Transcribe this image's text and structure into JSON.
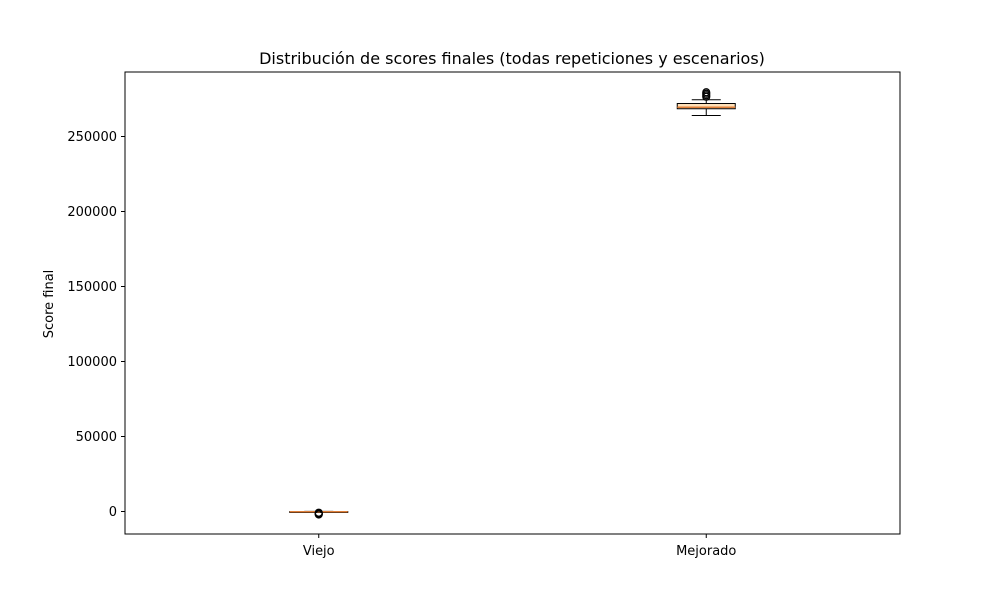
{
  "chart_data": {
    "type": "box",
    "title": "Distribución de scores finales (todas repeticiones y escenarios)",
    "xlabel": "",
    "ylabel": "Score final",
    "ylim": [
      -15000,
      293000
    ],
    "yticks": [
      0,
      50000,
      100000,
      150000,
      200000,
      250000
    ],
    "ytick_labels": [
      "0",
      "50000",
      "100000",
      "150000",
      "200000",
      "250000"
    ],
    "categories": [
      "Viejo",
      "Mejorado"
    ],
    "grid": false,
    "boxes": [
      {
        "category": "Viejo",
        "whisker_low": -300,
        "q1": -250,
        "median": -200,
        "q3": 0,
        "whisker_high": 50,
        "outliers": [
          -800,
          -1200,
          -1600,
          -2000
        ]
      },
      {
        "category": "Mejorado",
        "whisker_low": 264000,
        "q1": 268500,
        "median": 269500,
        "q3": 272000,
        "whisker_high": 274500,
        "outliers": [
          276500,
          277500,
          278500,
          279500
        ]
      }
    ],
    "colors": {
      "box_edge": "#000000",
      "median": "#e0803a",
      "box_face": "#ffe0b8",
      "outlier_edge": "#000000"
    }
  }
}
